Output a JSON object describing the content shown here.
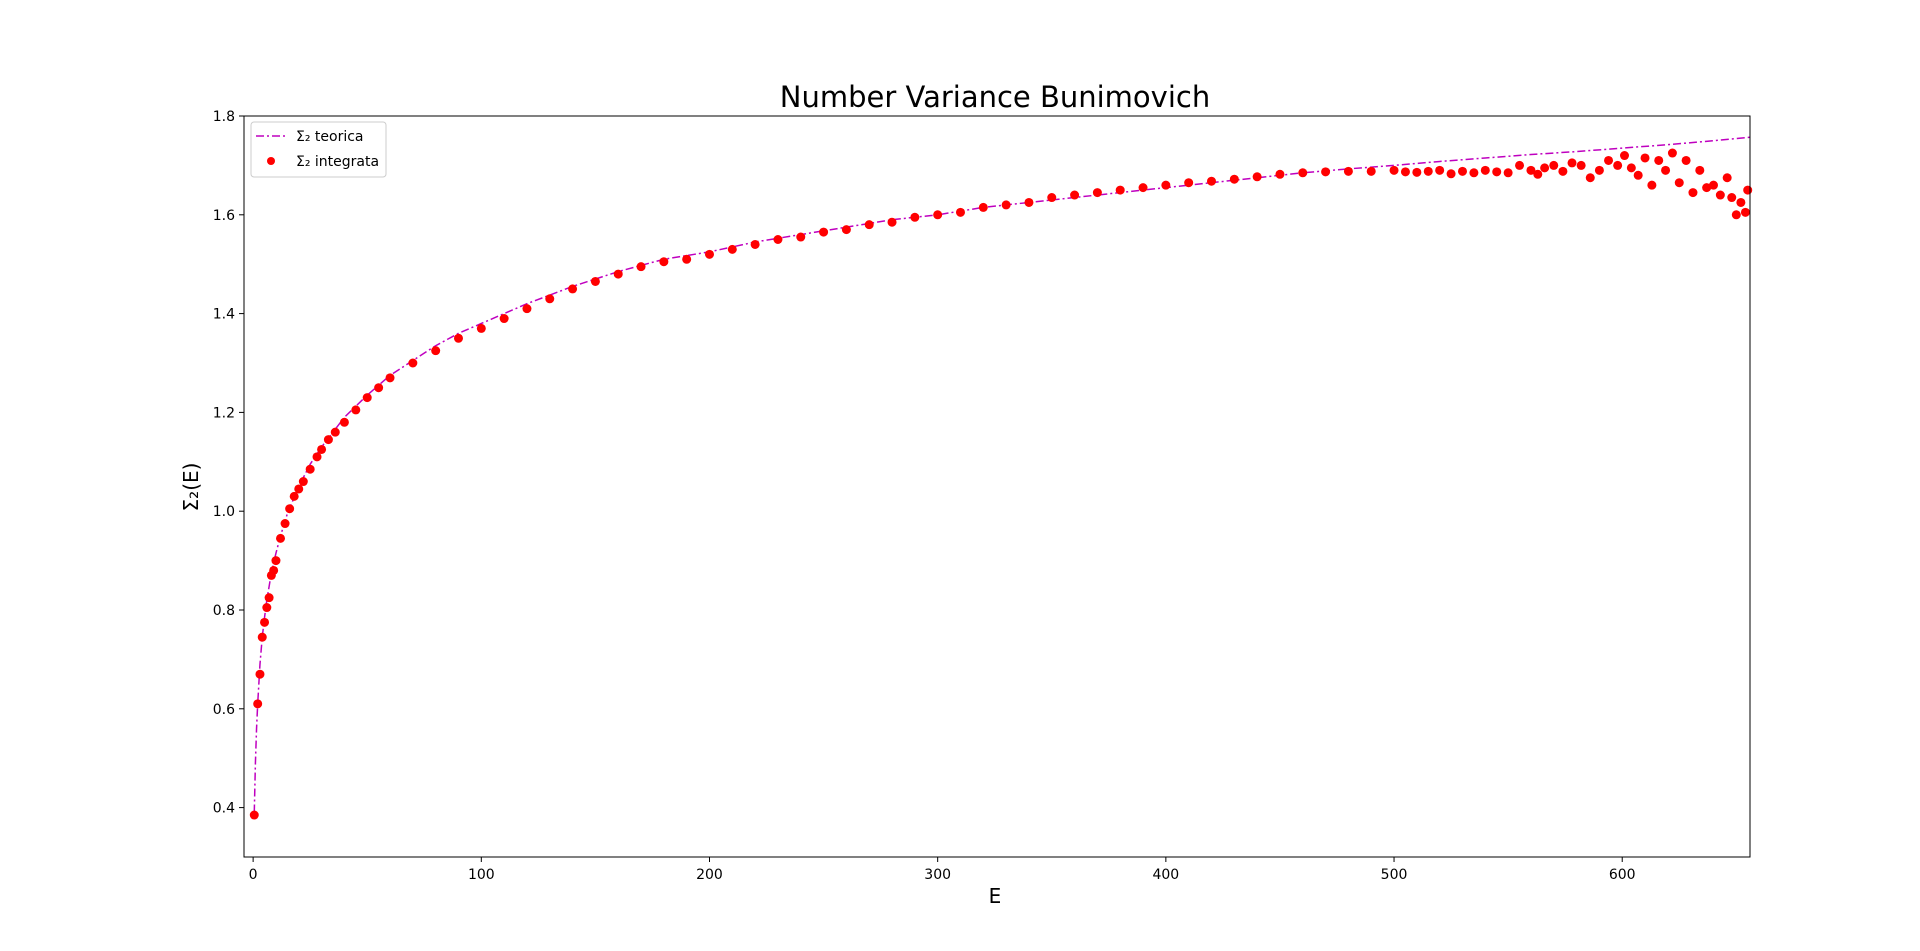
{
  "chart_data": {
    "type": "scatter",
    "title": "Number Variance Bunimovich",
    "xlabel": "E",
    "ylabel": "Σ₂(E)",
    "xlim": [
      -4,
      656
    ],
    "ylim": [
      0.3,
      1.8
    ],
    "xticks": [
      0,
      100,
      200,
      300,
      400,
      500,
      600
    ],
    "yticks": [
      0.4,
      0.6,
      0.8,
      1.0,
      1.2,
      1.4,
      1.6,
      1.8
    ],
    "grid": false,
    "legend_position": "top-left",
    "colors": {
      "theory": "#bf00bf",
      "points": "#ff0000"
    },
    "series": [
      {
        "name": "Σ₂ teorica",
        "kind": "line",
        "style": "dash-dot",
        "x": [
          0.5,
          1,
          1.5,
          2,
          3,
          4,
          5,
          6,
          8,
          10,
          12,
          15,
          20,
          25,
          30,
          40,
          50,
          60,
          70,
          80,
          90,
          100,
          110,
          120,
          140,
          160,
          180,
          200,
          220,
          240,
          260,
          280,
          300,
          320,
          340,
          360,
          380,
          400,
          420,
          440,
          460,
          480,
          500,
          520,
          540,
          560,
          580,
          600,
          620,
          640,
          656
        ],
        "y": [
          0.39,
          0.49,
          0.56,
          0.61,
          0.69,
          0.745,
          0.785,
          0.82,
          0.875,
          0.915,
          0.95,
          0.995,
          1.05,
          1.095,
          1.13,
          1.19,
          1.235,
          1.275,
          1.305,
          1.335,
          1.36,
          1.38,
          1.4,
          1.42,
          1.455,
          1.485,
          1.51,
          1.525,
          1.545,
          1.56,
          1.575,
          1.59,
          1.6,
          1.615,
          1.625,
          1.635,
          1.645,
          1.655,
          1.665,
          1.675,
          1.685,
          1.693,
          1.7,
          1.708,
          1.715,
          1.722,
          1.728,
          1.735,
          1.742,
          1.75,
          1.757
        ]
      },
      {
        "name": "Σ₂ integrata",
        "kind": "scatter",
        "x": [
          0.5,
          2,
          3,
          4,
          5,
          6,
          7,
          8,
          9,
          10,
          12,
          14,
          16,
          18,
          20,
          22,
          25,
          28,
          30,
          33,
          36,
          40,
          45,
          50,
          55,
          60,
          70,
          80,
          90,
          100,
          110,
          120,
          130,
          140,
          150,
          160,
          170,
          180,
          190,
          200,
          210,
          220,
          230,
          240,
          250,
          260,
          270,
          280,
          290,
          300,
          310,
          320,
          330,
          340,
          350,
          360,
          370,
          380,
          390,
          400,
          410,
          420,
          430,
          440,
          450,
          460,
          470,
          480,
          490,
          500,
          505,
          510,
          515,
          520,
          525,
          530,
          535,
          540,
          545,
          550,
          555,
          560,
          563,
          566,
          570,
          574,
          578,
          582,
          586,
          590,
          594,
          598,
          601,
          604,
          607,
          610,
          613,
          616,
          619,
          622,
          625,
          628,
          631,
          634,
          637,
          640,
          643,
          646,
          648,
          650,
          652,
          654,
          655
        ],
        "y": [
          0.385,
          0.61,
          0.67,
          0.745,
          0.775,
          0.805,
          0.825,
          0.87,
          0.88,
          0.9,
          0.945,
          0.975,
          1.005,
          1.03,
          1.045,
          1.06,
          1.085,
          1.11,
          1.125,
          1.145,
          1.16,
          1.18,
          1.205,
          1.23,
          1.25,
          1.27,
          1.3,
          1.325,
          1.35,
          1.37,
          1.39,
          1.41,
          1.43,
          1.45,
          1.465,
          1.48,
          1.495,
          1.505,
          1.51,
          1.52,
          1.53,
          1.54,
          1.55,
          1.555,
          1.565,
          1.57,
          1.58,
          1.585,
          1.595,
          1.6,
          1.605,
          1.615,
          1.62,
          1.625,
          1.635,
          1.64,
          1.645,
          1.65,
          1.655,
          1.66,
          1.665,
          1.668,
          1.672,
          1.677,
          1.682,
          1.685,
          1.687,
          1.688,
          1.688,
          1.69,
          1.687,
          1.686,
          1.688,
          1.69,
          1.683,
          1.688,
          1.685,
          1.69,
          1.687,
          1.685,
          1.7,
          1.69,
          1.682,
          1.695,
          1.7,
          1.688,
          1.705,
          1.7,
          1.675,
          1.69,
          1.71,
          1.7,
          1.72,
          1.695,
          1.68,
          1.715,
          1.66,
          1.71,
          1.69,
          1.725,
          1.665,
          1.71,
          1.645,
          1.69,
          1.655,
          1.66,
          1.64,
          1.675,
          1.635,
          1.6,
          1.625,
          1.605,
          1.65
        ]
      }
    ]
  }
}
